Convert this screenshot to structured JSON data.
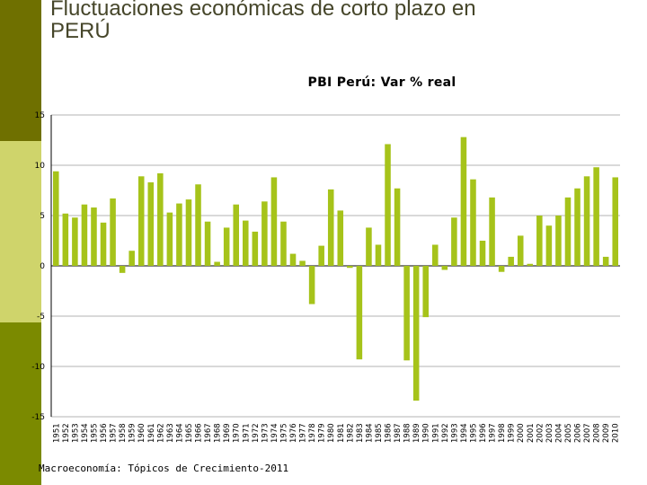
{
  "slide_title": "Fluctuaciones económicas de corto plazo en\nPERÚ",
  "footer": "Macroeconomía: Tópicos de Crecimiento-2011",
  "colors": {
    "bar": "#a6c31a",
    "sidebar_top": "#6f7000",
    "sidebar_mid": "#cfd46b",
    "sidebar_bottom": "#7b8a00"
  },
  "chart_data": {
    "type": "bar",
    "title": "PBI Perú: Var % real",
    "xlabel": "",
    "ylabel": "",
    "ylim": [
      -15,
      15
    ],
    "yticks": [
      15,
      10,
      5,
      0,
      -5,
      -10,
      -15
    ],
    "grid": true,
    "categories": [
      "1951",
      "1952",
      "1953",
      "1954",
      "1955",
      "1956",
      "1957",
      "1958",
      "1959",
      "1960",
      "1961",
      "1962",
      "1963",
      "1964",
      "1965",
      "1966",
      "1967",
      "1968",
      "1969",
      "1970",
      "1971",
      "1972",
      "1973",
      "1974",
      "1975",
      "1976",
      "1977",
      "1978",
      "1979",
      "1980",
      "1981",
      "1982",
      "1983",
      "1984",
      "1985",
      "1986",
      "1987",
      "1988",
      "1989",
      "1990",
      "1991",
      "1992",
      "1993",
      "1994",
      "1995",
      "1996",
      "1997",
      "1998",
      "1999",
      "2000",
      "2001",
      "2002",
      "2003",
      "2004",
      "2005",
      "2006",
      "2007",
      "2008",
      "2009",
      "2010"
    ],
    "values": [
      9.4,
      5.2,
      4.8,
      6.1,
      5.8,
      4.3,
      6.7,
      -0.7,
      1.5,
      8.9,
      8.3,
      9.2,
      5.3,
      6.2,
      6.6,
      8.1,
      4.4,
      0.4,
      3.8,
      6.1,
      4.5,
      3.4,
      6.4,
      8.8,
      4.4,
      1.2,
      0.5,
      -3.8,
      2.0,
      7.6,
      5.5,
      -0.2,
      -9.3,
      3.8,
      2.1,
      12.1,
      7.7,
      -9.4,
      -13.4,
      -5.1,
      2.1,
      -0.4,
      4.8,
      12.8,
      8.6,
      2.5,
      6.8,
      -0.6,
      0.9,
      3.0,
      0.2,
      5.0,
      4.0,
      5.0,
      6.8,
      7.7,
      8.9,
      9.8,
      0.9,
      8.8
    ]
  }
}
